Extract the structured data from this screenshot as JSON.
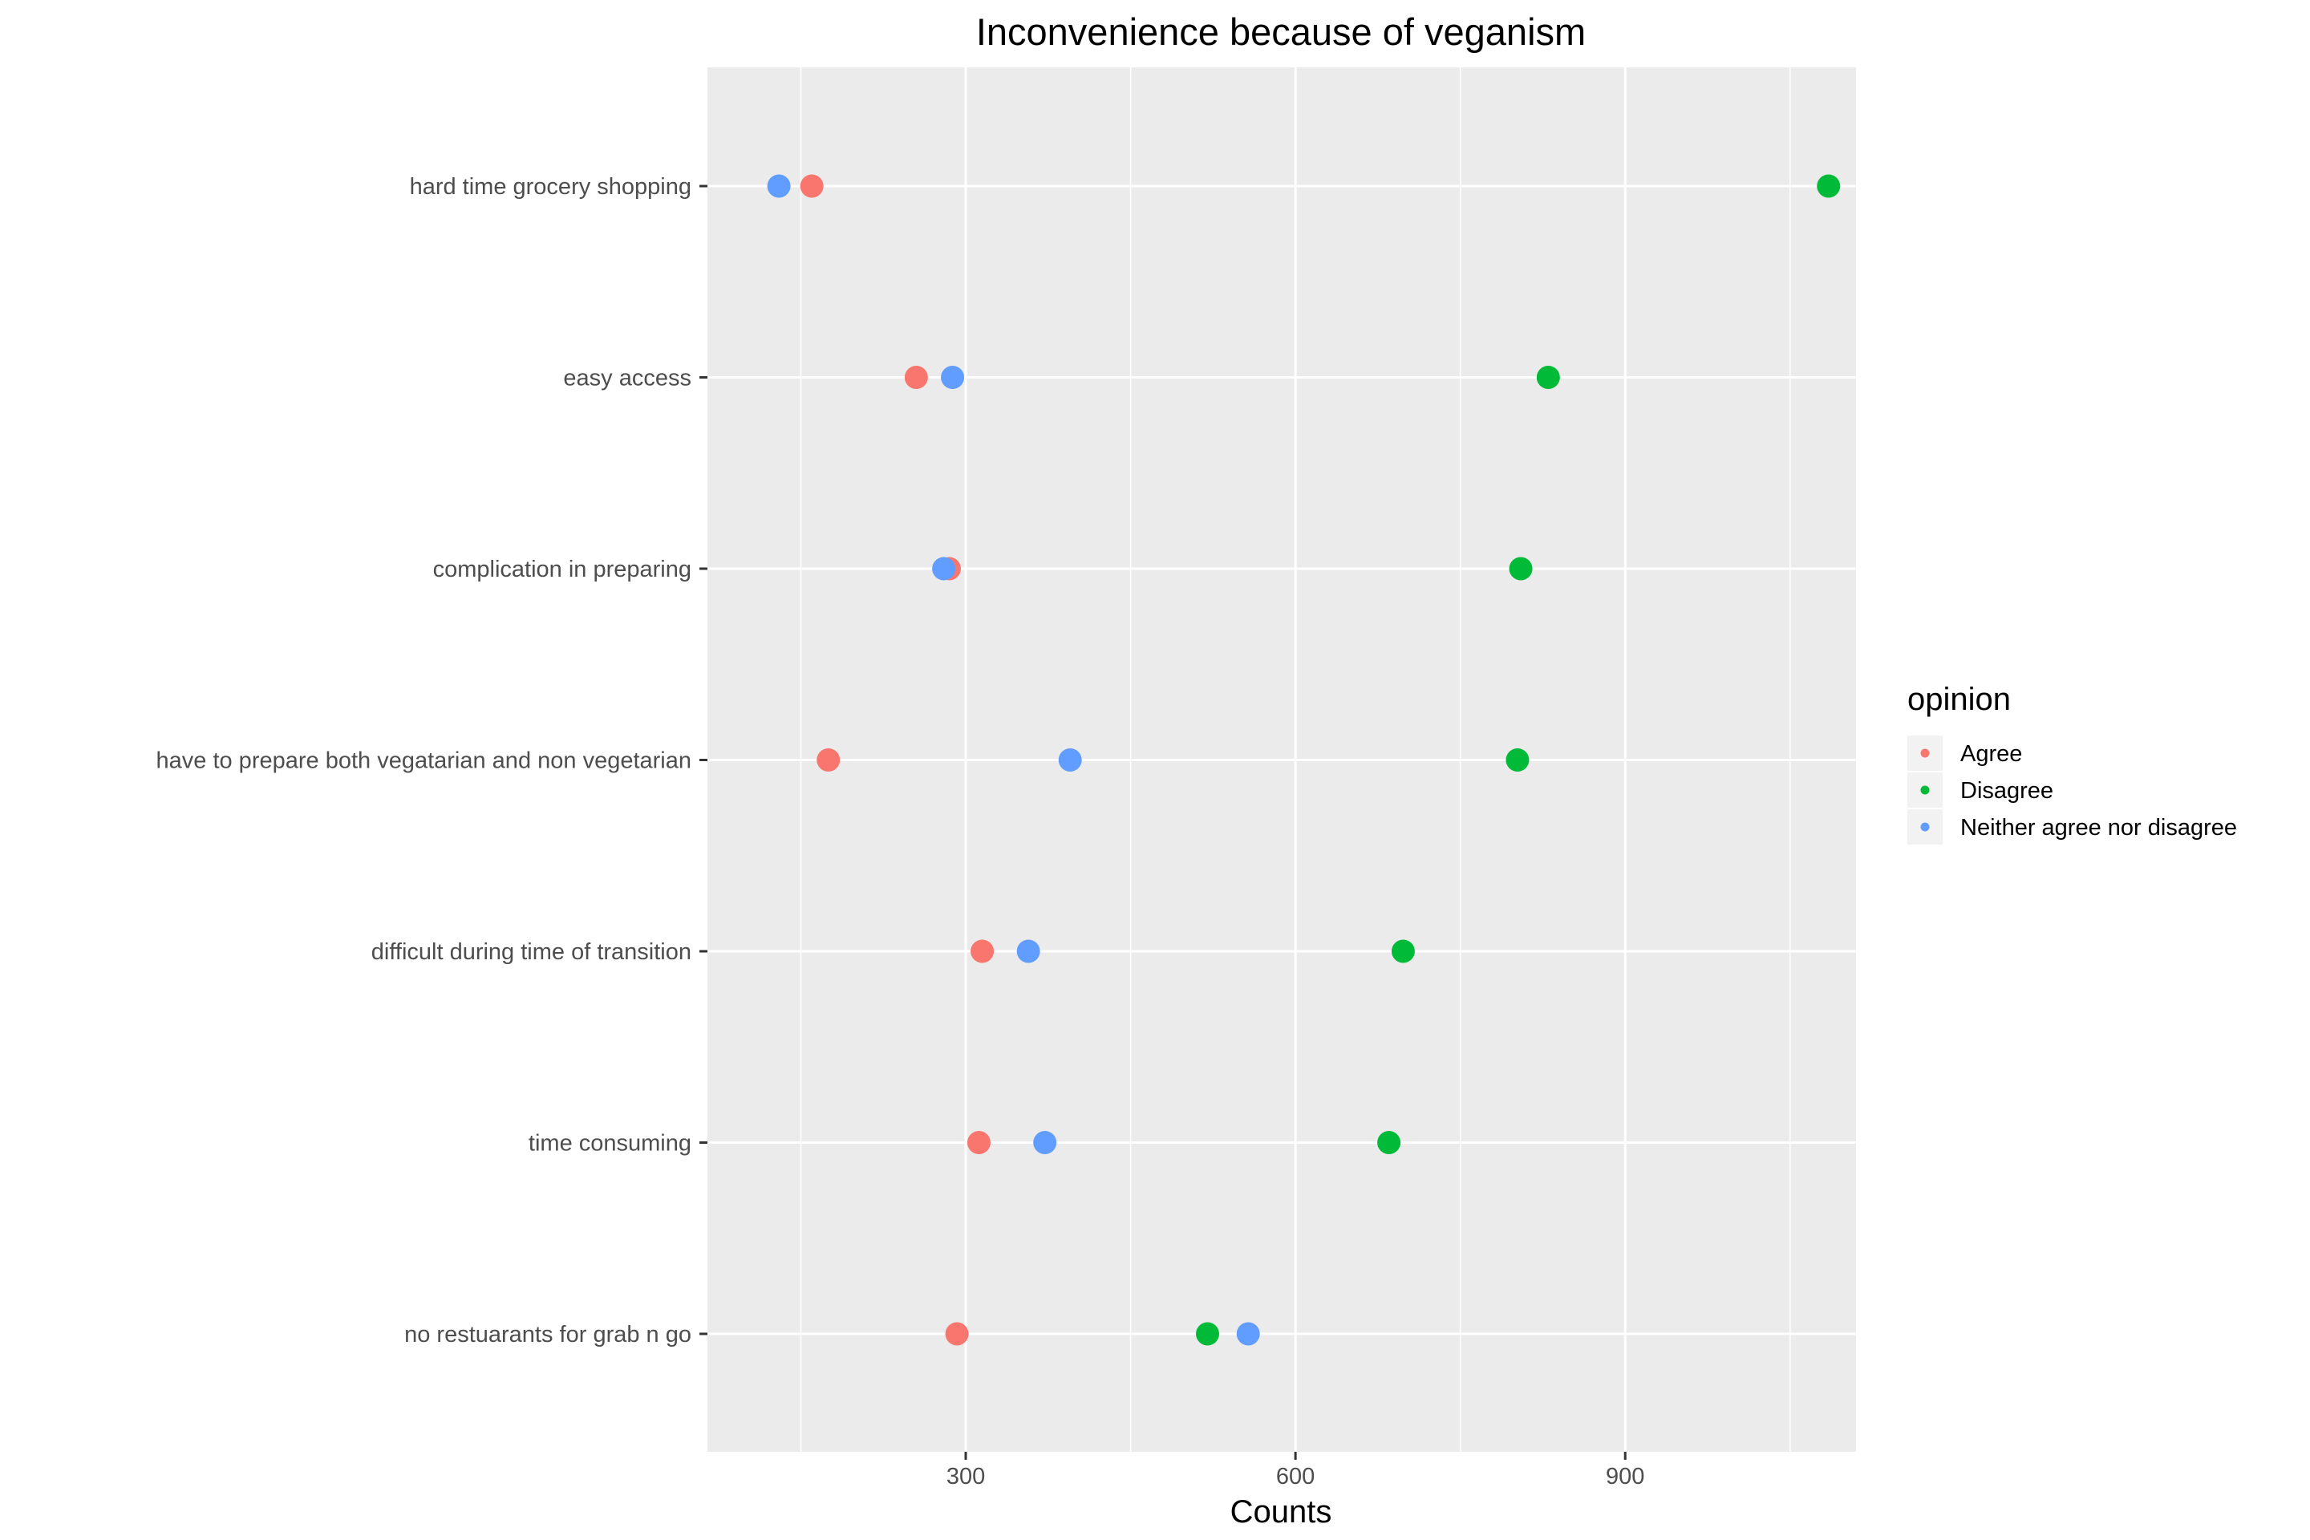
{
  "chart_data": {
    "type": "scatter",
    "title": "Inconvenience because of veganism",
    "xlabel": "Counts",
    "ylabel": "",
    "xlim": [
      65,
      1110
    ],
    "xticks": [
      300,
      600,
      900
    ],
    "grid": true,
    "legend_position": "right",
    "legend": {
      "title": "opinion",
      "entries": [
        "Agree",
        "Disagree",
        "Neither agree nor disagree"
      ]
    },
    "categories": [
      "hard time grocery shopping",
      "easy access",
      "complication in preparing",
      "have to prepare both vegatarian and non vegetarian",
      "difficult during time of transition",
      "time consuming",
      "no restuarants for grab n go"
    ],
    "series": [
      {
        "name": "Agree",
        "color": "#F8766D",
        "values": [
          160,
          255,
          285,
          175,
          315,
          312,
          292
        ]
      },
      {
        "name": "Disagree",
        "color": "#00BA38",
        "values": [
          1085,
          830,
          805,
          802,
          698,
          685,
          520
        ]
      },
      {
        "name": "Neither agree nor disagree",
        "color": "#619CFF",
        "values": [
          130,
          288,
          280,
          395,
          357,
          372,
          557
        ]
      }
    ]
  }
}
